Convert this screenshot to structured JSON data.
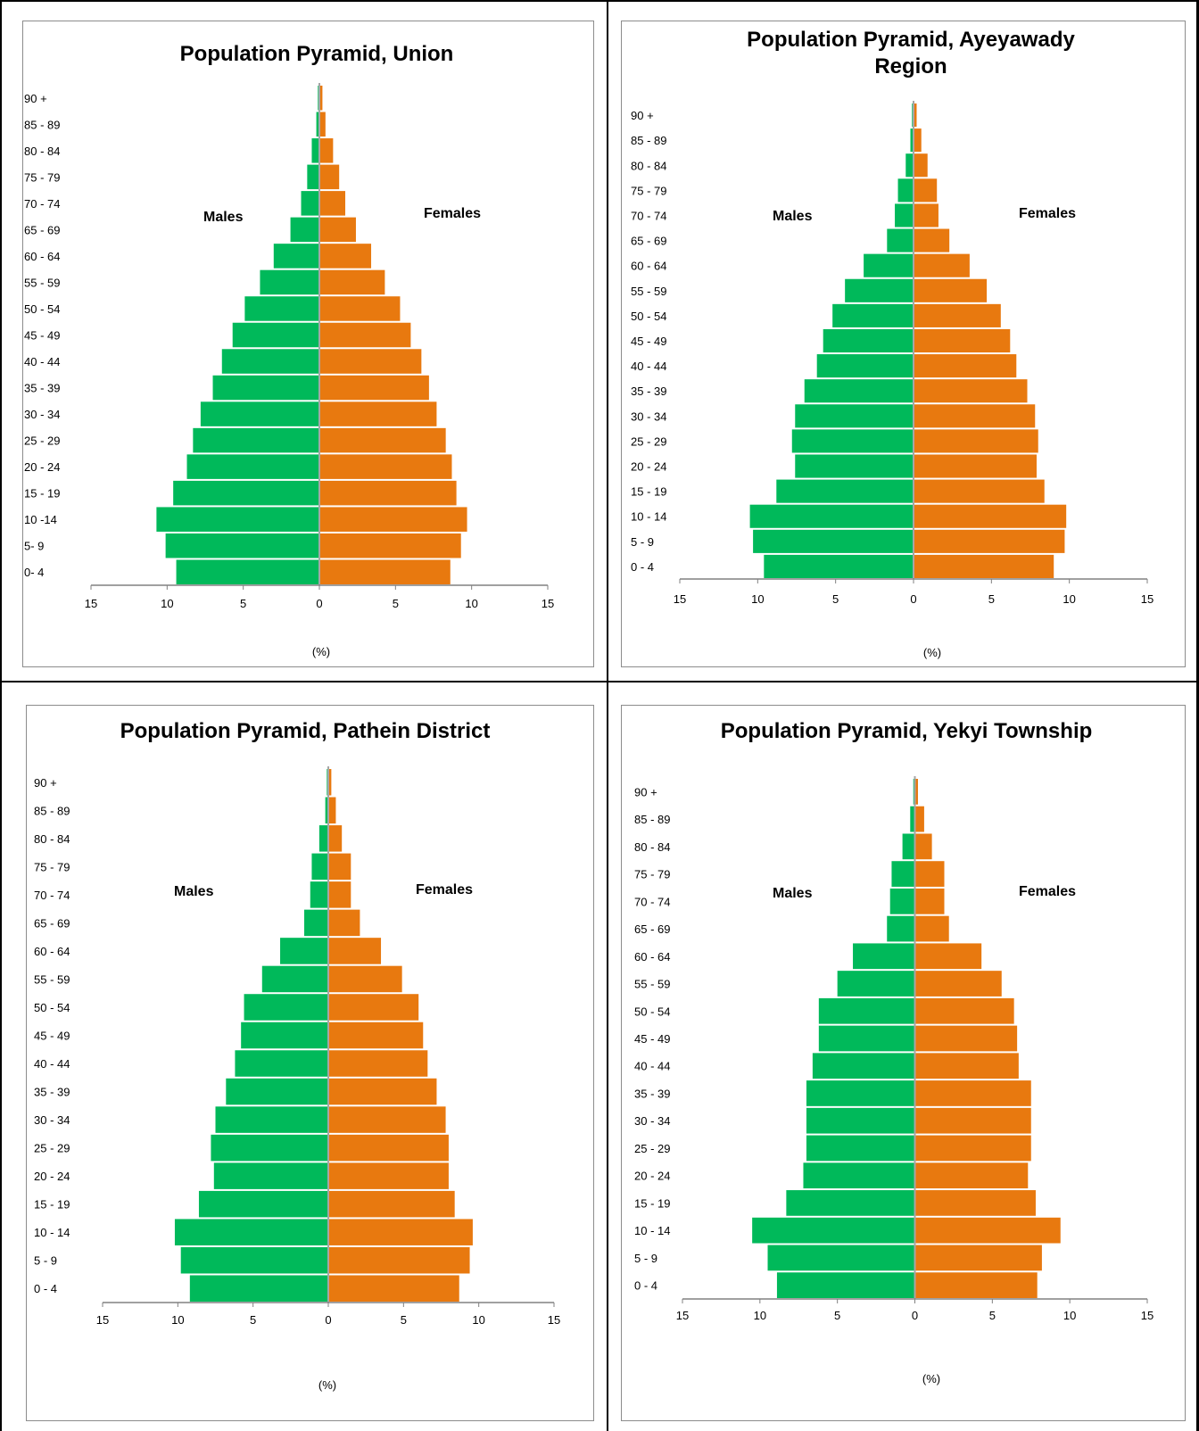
{
  "colors": {
    "males": "#00b95a",
    "females": "#e8790f",
    "axis": "#808080",
    "center": "#a6a6a6",
    "border": "#8c8c8c"
  },
  "age_groups": [
    "0 - 4",
    "5 - 9",
    "10 - 14",
    "15 - 19",
    "20 - 24",
    "25 - 29",
    "30 - 34",
    "35 - 39",
    "40 - 44",
    "45 - 49",
    "50 - 54",
    "55 - 59",
    "60 - 64",
    "65 - 69",
    "70 - 74",
    "75 - 79",
    "80 - 84",
    "85 - 89",
    "90 +"
  ],
  "chart_data": [
    {
      "type": "bar",
      "title": "Population Pyramid, Union",
      "xlabel": "(%)",
      "xlim": [
        -15,
        15
      ],
      "xticks": [
        "15",
        "10",
        "5",
        "0",
        "5",
        "10",
        "15"
      ],
      "categories": [
        "0-  4",
        "5-  9",
        "10 -14",
        "15 - 19",
        "20 - 24",
        "25 - 29",
        "30 - 34",
        "35 - 39",
        "40 - 44",
        "45 - 49",
        "50 - 54",
        "55 - 59",
        "60 - 64",
        "65 - 69",
        "70 - 74",
        "75 - 79",
        "80 - 84",
        "85 - 89",
        "90 +"
      ],
      "series": [
        {
          "name": "Males",
          "values": [
            9.4,
            10.1,
            10.7,
            9.6,
            8.7,
            8.3,
            7.8,
            7.0,
            6.4,
            5.7,
            4.9,
            3.9,
            3.0,
            1.9,
            1.2,
            0.8,
            0.5,
            0.2,
            0.1
          ]
        },
        {
          "name": "Females",
          "values": [
            8.6,
            9.3,
            9.7,
            9.0,
            8.7,
            8.3,
            7.7,
            7.2,
            6.7,
            6.0,
            5.3,
            4.3,
            3.4,
            2.4,
            1.7,
            1.3,
            0.9,
            0.4,
            0.2
          ]
        }
      ]
    },
    {
      "type": "bar",
      "title": "Population Pyramid, Ayeyawady Region",
      "xlabel": "(%)",
      "xlim": [
        -15,
        15
      ],
      "xticks": [
        "15",
        "10",
        "5",
        "0",
        "5",
        "10",
        "15"
      ],
      "categories": [
        "0 - 4",
        "5 - 9",
        "10 - 14",
        "15 - 19",
        "20 - 24",
        "25 - 29",
        "30 - 34",
        "35 - 39",
        "40 - 44",
        "45 - 49",
        "50 - 54",
        "55 - 59",
        "60 - 64",
        "65 - 69",
        "70 - 74",
        "75 - 79",
        "80 - 84",
        "85 - 89",
        "90 +"
      ],
      "series": [
        {
          "name": "Males",
          "values": [
            9.6,
            10.3,
            10.5,
            8.8,
            7.6,
            7.8,
            7.6,
            7.0,
            6.2,
            5.8,
            5.2,
            4.4,
            3.2,
            1.7,
            1.2,
            1.0,
            0.5,
            0.2,
            0.1
          ]
        },
        {
          "name": "Females",
          "values": [
            9.0,
            9.7,
            9.8,
            8.4,
            7.9,
            8.0,
            7.8,
            7.3,
            6.6,
            6.2,
            5.6,
            4.7,
            3.6,
            2.3,
            1.6,
            1.5,
            0.9,
            0.5,
            0.2
          ]
        }
      ]
    },
    {
      "type": "bar",
      "title": "Population Pyramid, Pathein District",
      "xlabel": "(%)",
      "xlim": [
        -15,
        15
      ],
      "xticks": [
        "15",
        "10",
        "5",
        "0",
        "5",
        "10",
        "15"
      ],
      "categories": [
        "0 - 4",
        "5 - 9",
        "10 - 14",
        "15 - 19",
        "20 - 24",
        "25 - 29",
        "30 - 34",
        "35 - 39",
        "40 - 44",
        "45 - 49",
        "50 - 54",
        "55 - 59",
        "60 - 64",
        "65 - 69",
        "70 - 74",
        "75 - 79",
        "80 - 84",
        "85 - 89",
        "90 +"
      ],
      "series": [
        {
          "name": "Males",
          "values": [
            9.2,
            9.8,
            10.2,
            8.6,
            7.6,
            7.8,
            7.5,
            6.8,
            6.2,
            5.8,
            5.6,
            4.4,
            3.2,
            1.6,
            1.2,
            1.1,
            0.6,
            0.2,
            0.1
          ]
        },
        {
          "name": "Females",
          "values": [
            8.7,
            9.4,
            9.6,
            8.4,
            8.0,
            8.0,
            7.8,
            7.2,
            6.6,
            6.3,
            6.0,
            4.9,
            3.5,
            2.1,
            1.5,
            1.5,
            0.9,
            0.5,
            0.2
          ]
        }
      ]
    },
    {
      "type": "bar",
      "title": "Population Pyramid, Yekyi Township",
      "xlabel": "(%)",
      "xlim": [
        -15,
        15
      ],
      "xticks": [
        "15",
        "10",
        "5",
        "0",
        "5",
        "10",
        "15"
      ],
      "categories": [
        "0 - 4",
        "5 - 9",
        "10 - 14",
        "15 - 19",
        "20 - 24",
        "25 - 29",
        "30 - 34",
        "35 - 39",
        "40 - 44",
        "45 - 49",
        "50 - 54",
        "55 - 59",
        "60 - 64",
        "65 - 69",
        "70 - 74",
        "75 - 79",
        "80 - 84",
        "85 - 89",
        "90 +"
      ],
      "series": [
        {
          "name": "Males",
          "values": [
            8.9,
            9.5,
            10.5,
            8.3,
            7.2,
            7.0,
            7.0,
            7.0,
            6.6,
            6.2,
            6.2,
            5.0,
            4.0,
            1.8,
            1.6,
            1.5,
            0.8,
            0.3,
            0.1
          ]
        },
        {
          "name": "Females",
          "values": [
            7.9,
            8.2,
            9.4,
            7.8,
            7.3,
            7.5,
            7.5,
            7.5,
            6.7,
            6.6,
            6.4,
            5.6,
            4.3,
            2.2,
            1.9,
            1.9,
            1.1,
            0.6,
            0.2
          ]
        }
      ]
    }
  ]
}
